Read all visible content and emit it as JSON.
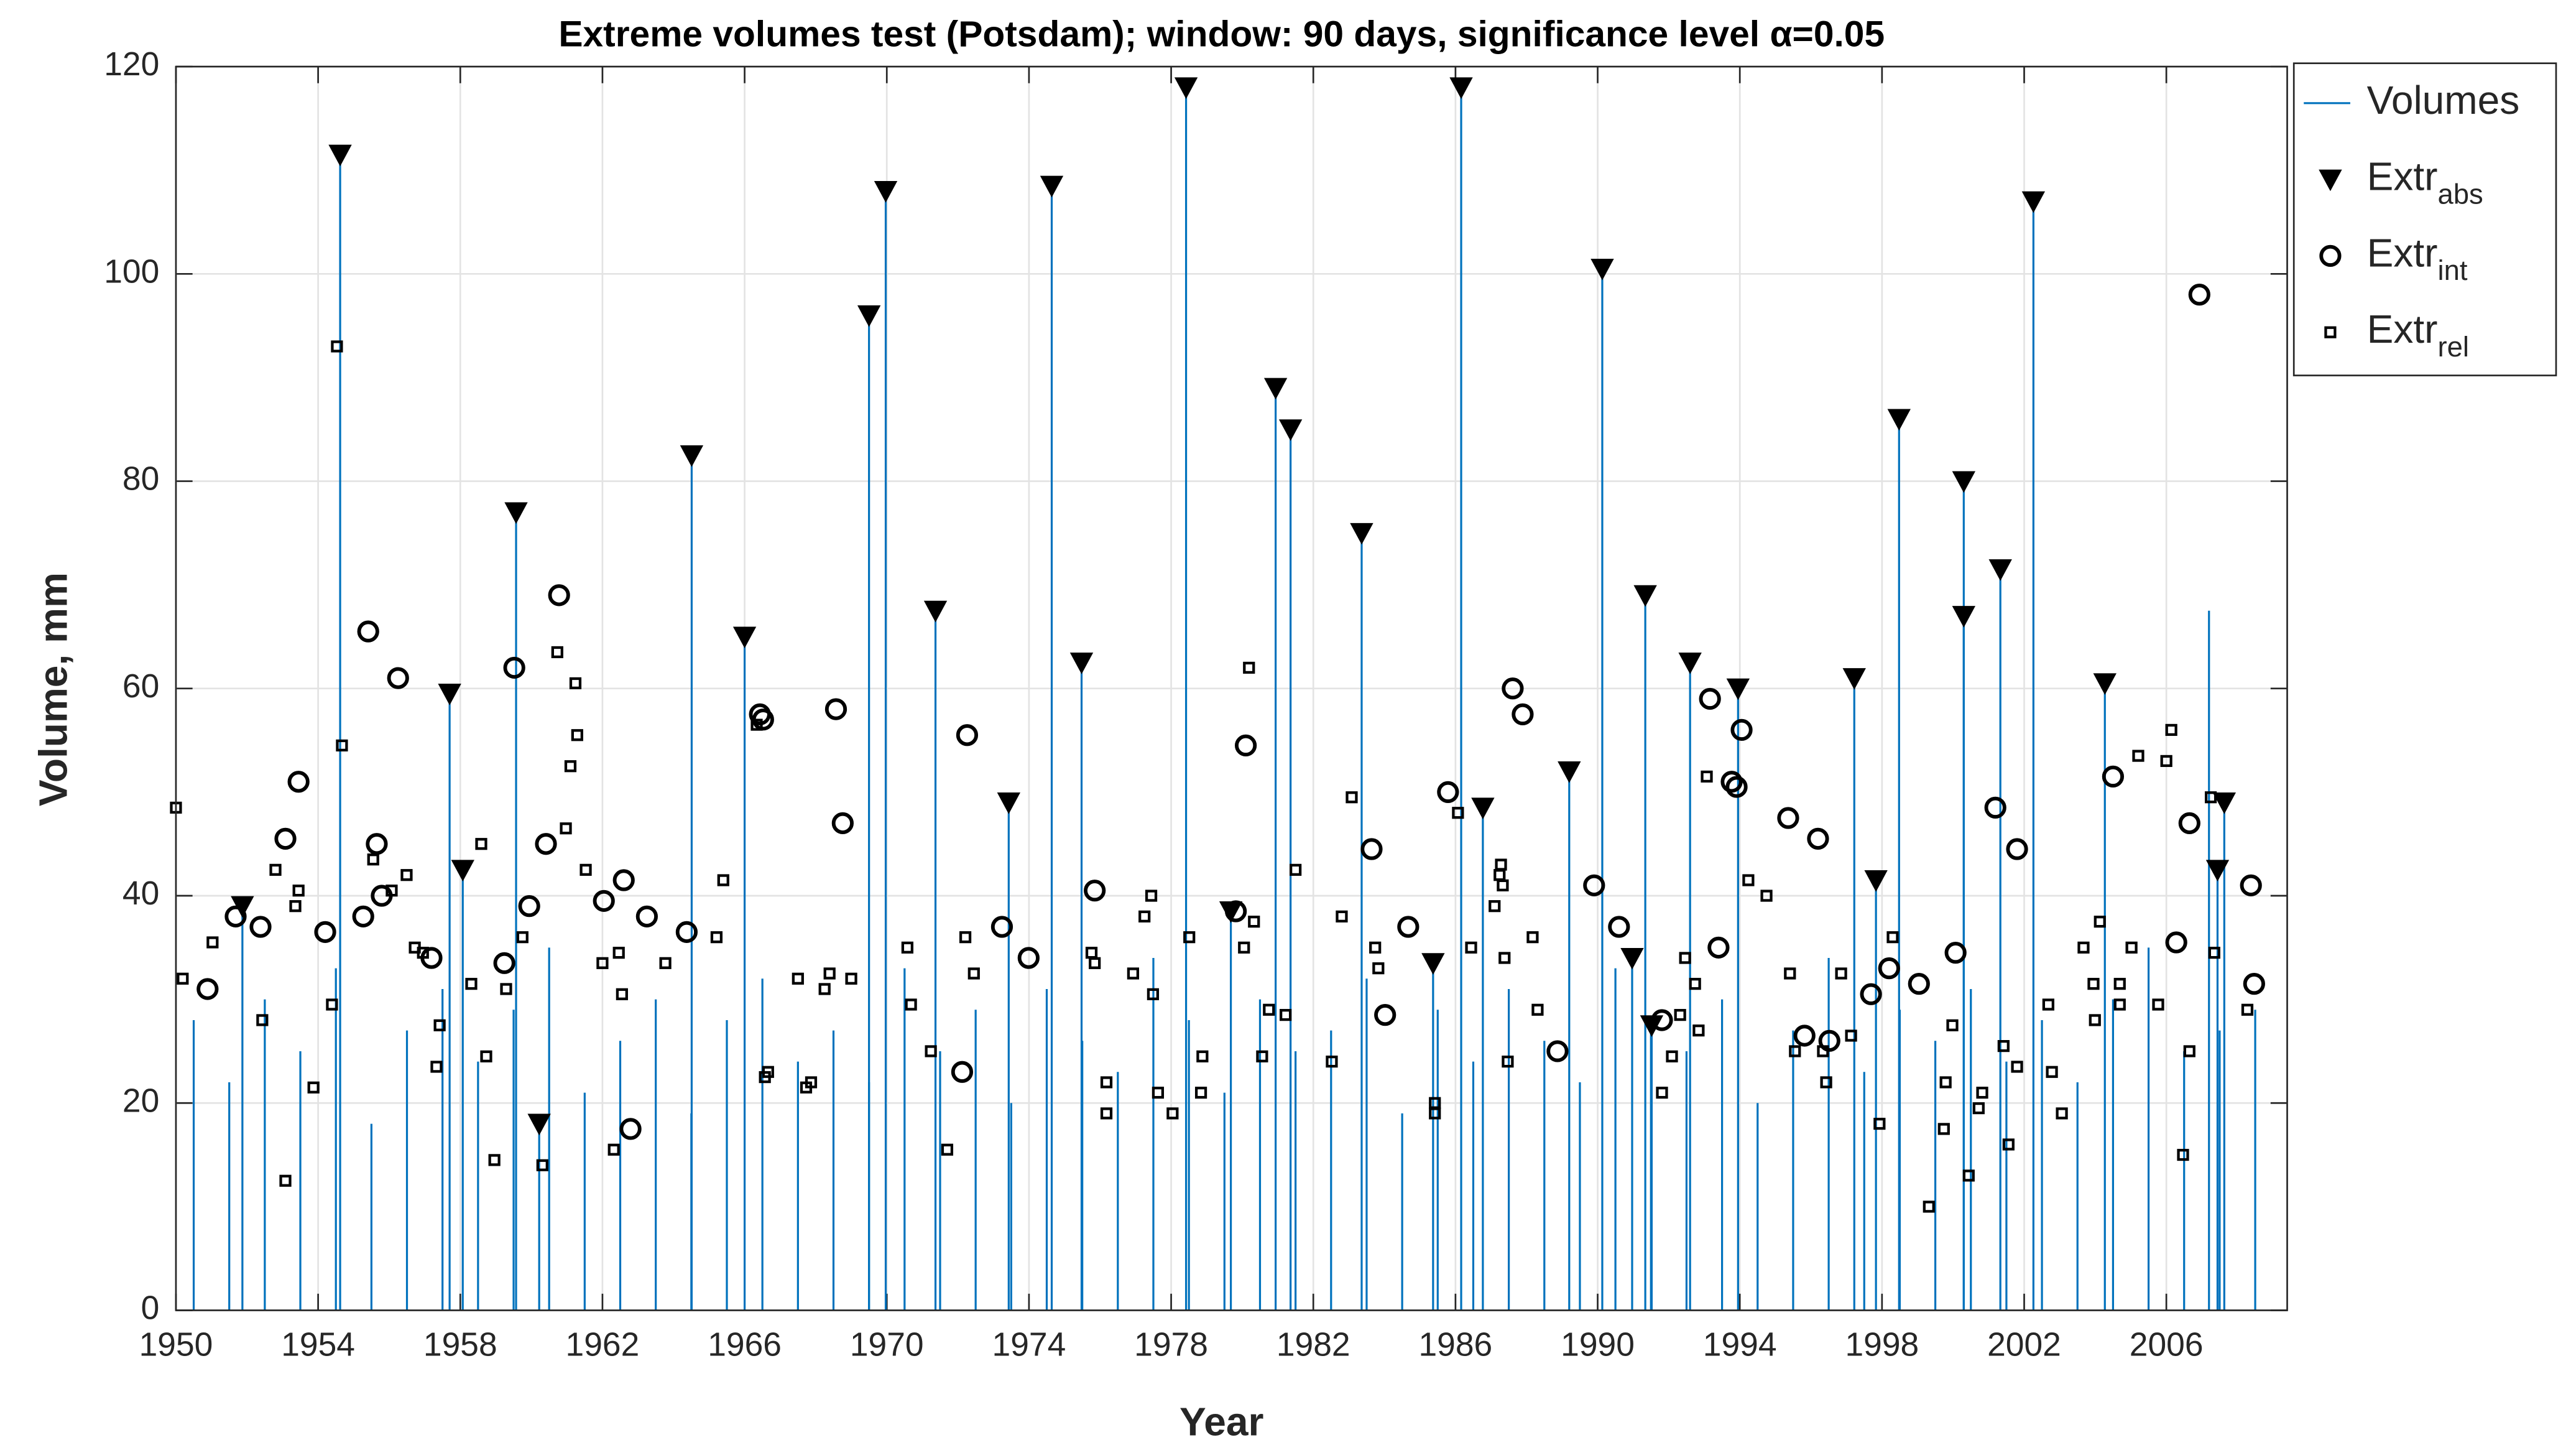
{
  "chart_data": {
    "type": "spike-scatter",
    "title": "Extreme volumes test (Potsdam); window: 90 days, significance level α=0.05",
    "xlabel": "Year",
    "ylabel": "Volume, mm",
    "xlim": [
      1950,
      2009.4
    ],
    "ylim": [
      0,
      120
    ],
    "xticks": [
      1950,
      1954,
      1958,
      1962,
      1966,
      1970,
      1974,
      1978,
      1982,
      1986,
      1990,
      1994,
      1998,
      2002,
      2006
    ],
    "yticks": [
      0,
      20,
      40,
      60,
      80,
      100,
      120
    ],
    "grid": true,
    "legend": "northeastoutside",
    "series": [
      {
        "name": "Volumes",
        "color": "#0072BD",
        "marker": "spike",
        "x": [
          1951.87,
          1954.62,
          1957.7,
          1958.07,
          1959.57,
          1960.22,
          1964.51,
          1966.0,
          1969.5,
          1969.97,
          1971.37,
          1973.43,
          1974.64,
          1975.48,
          1978.42,
          1979.68,
          1980.94,
          1981.36,
          1983.36,
          1985.37,
          1986.16,
          1986.77,
          1989.2,
          1990.13,
          1990.97,
          1991.34,
          1991.52,
          1992.6,
          1993.95,
          1997.22,
          1997.83,
          1998.48,
          2000.3,
          2000.3,
          2001.33,
          2002.26,
          2004.27,
          2007.44,
          2007.63,
          1950.5,
          1951.5,
          1952.5,
          1953.5,
          1954.5,
          1955.5,
          1956.5,
          1957.5,
          1958.5,
          1959.5,
          1960.5,
          1961.5,
          1962.5,
          1963.5,
          1964.5,
          1965.5,
          1966.5,
          1967.5,
          1968.5,
          1969.5,
          1970.5,
          1971.5,
          1972.5,
          1973.5,
          1974.5,
          1975.5,
          1976.5,
          1977.5,
          1978.5,
          1979.5,
          1980.5,
          1981.5,
          1982.5,
          1983.5,
          1984.5,
          1985.5,
          1986.5,
          1987.5,
          1988.5,
          1989.5,
          1990.5,
          1991.5,
          1992.5,
          1993.5,
          1994.5,
          1995.5,
          1996.5,
          1997.5,
          1998.5,
          1999.5,
          2000.5,
          2001.5,
          2002.5,
          2003.5,
          2004.5,
          2005.5,
          2006.5,
          2007.5,
          2008.5,
          2007.2
        ],
        "values": [
          39,
          111.5,
          59.5,
          42.5,
          77,
          18,
          82.5,
          65,
          96,
          108,
          67.5,
          49,
          108.5,
          62.5,
          118,
          38.5,
          89,
          85,
          75,
          33.5,
          118,
          48.5,
          52,
          100.5,
          34,
          69,
          27.5,
          62.5,
          60,
          61,
          41.5,
          86,
          80,
          67,
          71.5,
          107,
          60.5,
          42.5,
          49,
          28,
          22,
          30,
          25,
          33,
          18,
          27,
          31,
          24,
          29,
          35,
          21,
          26,
          30,
          19,
          28,
          32,
          24,
          27,
          22,
          33,
          25,
          29,
          20,
          31,
          26,
          23,
          34,
          28,
          21,
          30,
          25,
          27,
          32,
          19,
          29,
          24,
          31,
          26,
          22,
          33,
          28,
          25,
          30,
          20,
          27,
          34,
          23,
          29,
          26,
          31,
          24,
          28,
          22,
          30,
          35,
          25,
          27,
          29,
          67.5
        ]
      },
      {
        "name": "Extr",
        "subscript": "abs",
        "color": "#000000",
        "marker": "triangle",
        "x": [
          1951.87,
          1954.62,
          1957.7,
          1958.07,
          1959.57,
          1960.22,
          1964.51,
          1966.0,
          1969.5,
          1969.97,
          1971.37,
          1973.43,
          1974.64,
          1975.48,
          1978.42,
          1979.68,
          1980.94,
          1981.36,
          1983.36,
          1985.37,
          1986.16,
          1986.77,
          1989.2,
          1990.13,
          1990.97,
          1991.34,
          1991.52,
          1992.6,
          1993.95,
          1997.22,
          1997.83,
          1998.48,
          2000.3,
          2000.3,
          2001.33,
          2002.26,
          2004.27,
          2007.44,
          2007.63
        ],
        "values": [
          39,
          111.5,
          59.5,
          42.5,
          77,
          18,
          82.5,
          65,
          96,
          108,
          67.5,
          49,
          108.5,
          62.5,
          118,
          38.5,
          89,
          85,
          75,
          33.5,
          118,
          48.5,
          52,
          100.5,
          34,
          69,
          27.5,
          62.5,
          60,
          61,
          41.5,
          86,
          80,
          67,
          71.5,
          107,
          60.5,
          42.5,
          49
        ]
      },
      {
        "name": "Extr",
        "subscript": "int",
        "color": "#000000",
        "marker": "circle",
        "x": [
          1951.68,
          1950.89,
          1952.38,
          1953.08,
          1953.45,
          1954.2,
          1955.27,
          1955.41,
          1955.65,
          1955.79,
          1956.25,
          1957.19,
          1959.24,
          1959.52,
          1959.94,
          1960.41,
          1960.78,
          1962.04,
          1962.6,
          1962.79,
          1963.25,
          1964.37,
          1966.43,
          1966.52,
          1968.57,
          1968.76,
          1972.12,
          1972.26,
          1973.24,
          1973.99,
          1975.85,
          1979.82,
          1980.1,
          1983.64,
          1984.02,
          1984.67,
          1985.79,
          1987.61,
          1987.89,
          1988.87,
          1989.9,
          1990.6,
          1991.81,
          1993.16,
          1993.4,
          1993.77,
          1993.91,
          1994.05,
          1995.36,
          1995.82,
          1996.2,
          1996.52,
          1997.69,
          1998.2,
          1999.04,
          2000.07,
          2001.19,
          2001.8,
          2004.5,
          2006.28,
          2006.65,
          2006.93,
          2008.38,
          2008.47
        ],
        "values": [
          38,
          31,
          37,
          45.5,
          51,
          36.5,
          38,
          65.5,
          45,
          40,
          61,
          34,
          33.5,
          62,
          39,
          45,
          69,
          39.5,
          41.5,
          17.5,
          38,
          36.5,
          57.5,
          57,
          58,
          47,
          23,
          55.5,
          37,
          34,
          40.5,
          38.5,
          54.5,
          44.5,
          28.5,
          37,
          50,
          60,
          57.5,
          25,
          41,
          37,
          28,
          59,
          35,
          51,
          50.5,
          56,
          47.5,
          26.5,
          45.5,
          26,
          30.5,
          33,
          31.5,
          34.5,
          48.5,
          44.5,
          51.5,
          35.5,
          47,
          98,
          41,
          31.5
        ]
      },
      {
        "name": "Extr",
        "subscript": "rel",
        "color": "#000000",
        "marker": "square",
        "x": [
          1950.0,
          1950.19,
          1951.03,
          1952.43,
          1952.8,
          1953.08,
          1953.36,
          1953.45,
          1953.87,
          1954.39,
          1954.53,
          1954.67,
          1955.55,
          1956.07,
          1956.49,
          1956.72,
          1956.95,
          1957.33,
          1957.42,
          1958.31,
          1958.59,
          1958.73,
          1958.96,
          1959.29,
          1959.75,
          1960.31,
          1960.73,
          1960.97,
          1961.1,
          1961.24,
          1961.29,
          1961.53,
          1962.0,
          1962.32,
          1962.46,
          1962.55,
          1963.77,
          1965.21,
          1965.4,
          1966.34,
          1966.57,
          1966.66,
          1967.5,
          1967.73,
          1967.87,
          1968.25,
          1968.39,
          1969.0,
          1970.58,
          1970.68,
          1971.24,
          1971.7,
          1972.21,
          1972.45,
          1975.76,
          1975.85,
          1976.18,
          1976.18,
          1976.93,
          1977.25,
          1977.44,
          1977.49,
          1977.63,
          1978.04,
          1978.51,
          1978.84,
          1978.88,
          1980.05,
          1980.19,
          1980.33,
          1980.56,
          1980.75,
          1981.22,
          1981.5,
          1982.52,
          1982.8,
          1983.08,
          1983.74,
          1983.83,
          1985.42,
          1985.42,
          1986.07,
          1986.44,
          1987.1,
          1987.24,
          1987.28,
          1987.33,
          1987.38,
          1987.47,
          1988.17,
          1988.31,
          1991.81,
          1992.09,
          1992.32,
          1992.46,
          1992.74,
          1992.84,
          1993.07,
          1994.24,
          1994.75,
          1995.41,
          1995.55,
          1996.34,
          1996.43,
          1996.85,
          1997.13,
          1997.93,
          1998.3,
          1999.32,
          1999.74,
          1999.79,
          1999.98,
          2000.44,
          2000.72,
          2000.82,
          2001.42,
          2001.56,
          2001.8,
          2002.68,
          2002.78,
          2003.06,
          2003.67,
          2003.95,
          2003.99,
          2004.13,
          2004.69,
          2004.69,
          2005.02,
          2005.21,
          2005.77,
          2006.0,
          2006.14,
          2006.47,
          2006.65,
          2007.25,
          2007.35,
          2008.28
        ],
        "values": [
          48.5,
          32,
          35.5,
          28,
          42.5,
          12.5,
          39,
          40.5,
          21.5,
          29.5,
          93,
          54.5,
          43.5,
          40.5,
          42,
          35,
          34.5,
          23.5,
          27.5,
          31.5,
          45,
          24.5,
          14.5,
          31,
          36,
          14,
          63.5,
          46.5,
          52.5,
          60.5,
          55.5,
          42.5,
          33.5,
          15.5,
          34.5,
          30.5,
          33.5,
          36,
          41.5,
          56.5,
          22.5,
          23,
          32,
          21.5,
          22,
          31,
          32.5,
          32,
          35,
          29.5,
          25,
          15.5,
          36,
          32.5,
          34.5,
          33.5,
          22,
          19,
          32.5,
          38,
          40,
          30.5,
          21,
          19,
          36,
          21,
          24.5,
          35,
          62,
          37.5,
          24.5,
          29,
          28.5,
          42.5,
          24,
          38,
          49.5,
          35,
          33,
          20,
          19,
          48,
          35,
          39,
          42,
          43,
          41,
          34,
          24,
          36,
          29,
          21,
          24.5,
          28.5,
          34,
          31.5,
          27,
          51.5,
          41.5,
          40,
          32.5,
          25,
          25,
          22,
          32.5,
          26.5,
          18,
          36,
          10,
          17.5,
          22,
          27.5,
          13,
          19.5,
          21,
          25.5,
          16,
          23.5,
          29.5,
          23,
          19,
          35,
          31.5,
          28,
          37.5,
          29.5,
          31.5,
          35,
          53.5,
          29.5,
          53,
          56,
          15,
          25,
          49.5,
          34.5,
          29
        ]
      }
    ]
  }
}
